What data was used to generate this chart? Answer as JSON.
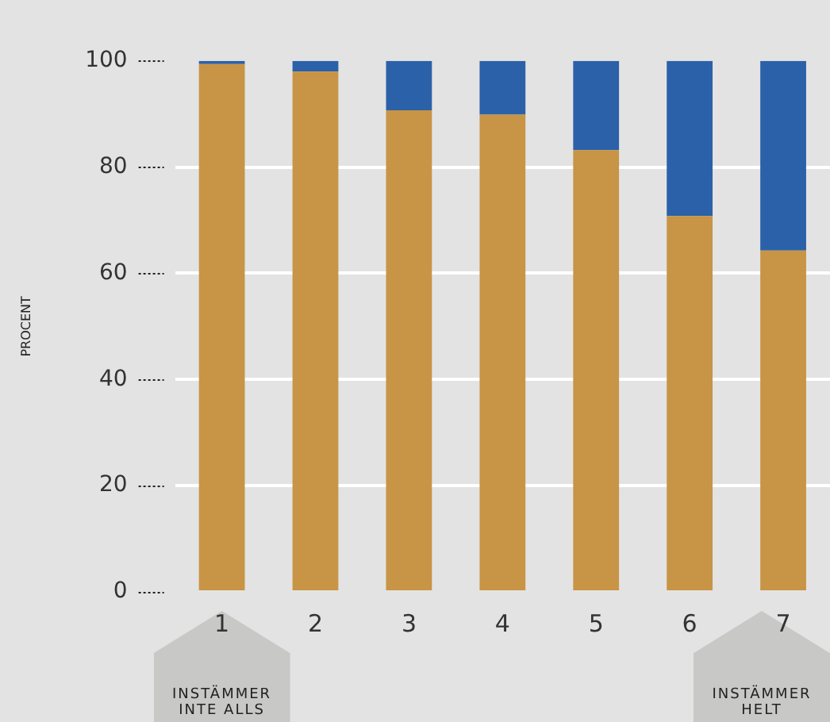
{
  "chart_data": {
    "type": "bar",
    "stacked": true,
    "ylabel": "PROCENT",
    "categories": [
      "1",
      "2",
      "3",
      "4",
      "5",
      "6",
      "7"
    ],
    "series": [
      {
        "color": "#c89445",
        "values": [
          99.4,
          98.0,
          90.7,
          89.9,
          83.2,
          70.8,
          64.3
        ]
      },
      {
        "color": "#2b61a8",
        "values": [
          0.6,
          2.0,
          9.3,
          10.1,
          16.8,
          29.2,
          35.7
        ]
      }
    ],
    "ylim": [
      0,
      100
    ],
    "yticks": [
      0,
      20,
      40,
      60,
      80,
      100
    ],
    "grid": "y",
    "legend": false,
    "annotations": [
      "INSTÄMMER\nINTE ALLS",
      "INSTÄMMER\nHELT"
    ]
  }
}
